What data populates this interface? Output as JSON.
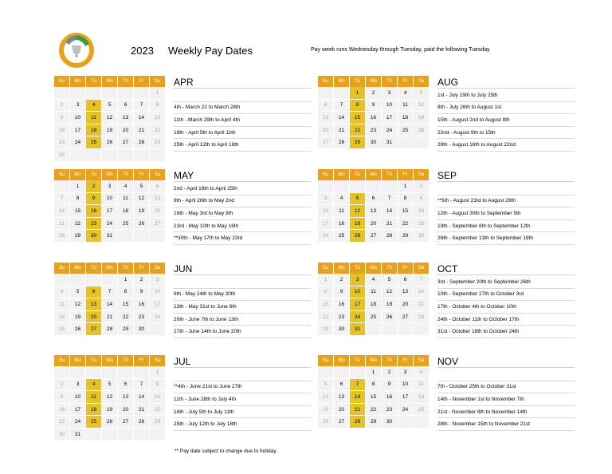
{
  "header": {
    "year": "2023",
    "title": "Weekly Pay Dates",
    "subtitle": "Pay week runs Wednesday through Tuesday, paid the following Tuesday"
  },
  "day_headers": [
    "Su",
    "Mo",
    "Tu",
    "We",
    "Th",
    "Fr",
    "Sa"
  ],
  "colors": {
    "header_bg": "#e8a21a",
    "pay_day": "#e6c229",
    "cell_bg": "#f2f2f2"
  },
  "footnote": "** Pay date subject to change due to holiday.",
  "months": [
    {
      "name": "APR",
      "weeks": [
        [
          "",
          "",
          "",
          "",
          "",
          "",
          "1"
        ],
        [
          "2",
          "3",
          "4",
          "5",
          "6",
          "7",
          "8"
        ],
        [
          "9",
          "10",
          "11",
          "12",
          "13",
          "14",
          "15"
        ],
        [
          "16",
          "17",
          "18",
          "19",
          "20",
          "21",
          "22"
        ],
        [
          "23",
          "24",
          "25",
          "26",
          "27",
          "28",
          "29"
        ],
        [
          "30",
          "",
          "",
          "",
          "",
          "",
          ""
        ]
      ],
      "pay": [
        "4",
        "11",
        "18",
        "25"
      ],
      "lines": [
        "",
        "4th - March 22 to March 28th",
        "11th - March 29th to April 4th",
        "18th - April 5th to April 11th",
        "25th - April 12th to April 18th"
      ]
    },
    {
      "name": "AUG",
      "weeks": [
        [
          "",
          "",
          "1",
          "2",
          "3",
          "4",
          "5"
        ],
        [
          "6",
          "7",
          "8",
          "9",
          "10",
          "11",
          "12"
        ],
        [
          "13",
          "14",
          "15",
          "16",
          "17",
          "18",
          "19"
        ],
        [
          "20",
          "21",
          "22",
          "23",
          "24",
          "25",
          "26"
        ],
        [
          "27",
          "28",
          "29",
          "30",
          "31",
          "",
          ""
        ]
      ],
      "pay": [
        "1",
        "8",
        "15",
        "22",
        "29"
      ],
      "lines": [
        "1st - July 19th to July 25th",
        "8th - July 26th to August 1st",
        "15th - August 2nd to August 8th",
        "22nd - August 9th to 15th",
        "29th - August 16th to August 22nd"
      ]
    },
    {
      "name": "MAY",
      "weeks": [
        [
          "",
          "1",
          "2",
          "3",
          "4",
          "5",
          "6"
        ],
        [
          "7",
          "8",
          "9",
          "10",
          "11",
          "12",
          "13"
        ],
        [
          "14",
          "15",
          "16",
          "17",
          "18",
          "19",
          "20"
        ],
        [
          "21",
          "22",
          "23",
          "24",
          "25",
          "26",
          "27"
        ],
        [
          "28",
          "29",
          "30",
          "31",
          "",
          "",
          ""
        ]
      ],
      "pay": [
        "2",
        "9",
        "16",
        "23",
        "30"
      ],
      "lines": [
        "2nd - April 19th to April 25th",
        "9th - April 26th to May 2nd",
        "16th - May 3rd to May 9th",
        "23rd - May 10th to May 16th",
        "**30th - May 17th to May 23rd"
      ]
    },
    {
      "name": "SEP",
      "weeks": [
        [
          "",
          "",
          "",
          "",
          "",
          "1",
          "2"
        ],
        [
          "3",
          "4",
          "5",
          "6",
          "7",
          "8",
          "9"
        ],
        [
          "10",
          "11",
          "12",
          "13",
          "14",
          "15",
          "16"
        ],
        [
          "17",
          "18",
          "19",
          "20",
          "21",
          "22",
          "23"
        ],
        [
          "24",
          "25",
          "26",
          "27",
          "28",
          "29",
          "30"
        ]
      ],
      "pay": [
        "5",
        "12",
        "19",
        "26"
      ],
      "lines": [
        "",
        "**5th - August 23rd to August 29th",
        "12th - August 30th to September 5th",
        "19th - September 6th to September 12th",
        "26th - September 13th to September 19th"
      ]
    },
    {
      "name": "JUN",
      "weeks": [
        [
          "",
          "",
          "",
          "",
          "1",
          "2",
          "3"
        ],
        [
          "4",
          "5",
          "6",
          "7",
          "8",
          "9",
          "10"
        ],
        [
          "11",
          "12",
          "13",
          "14",
          "15",
          "16",
          "17"
        ],
        [
          "18",
          "19",
          "20",
          "21",
          "22",
          "23",
          "24"
        ],
        [
          "25",
          "26",
          "27",
          "28",
          "29",
          "30",
          ""
        ]
      ],
      "pay": [
        "6",
        "13",
        "20",
        "27"
      ],
      "lines": [
        "",
        "6th - May 24th to May 30th",
        "13th - May 31st to June 6th",
        "20th - June 7th to June 13th",
        "27th - June 14th to June 20th"
      ]
    },
    {
      "name": "OCT",
      "weeks": [
        [
          "1",
          "2",
          "3",
          "4",
          "5",
          "6",
          "7"
        ],
        [
          "8",
          "9",
          "10",
          "11",
          "12",
          "13",
          "14"
        ],
        [
          "15",
          "16",
          "17",
          "18",
          "19",
          "20",
          "21"
        ],
        [
          "22",
          "23",
          "24",
          "25",
          "26",
          "27",
          "28"
        ],
        [
          "29",
          "30",
          "31",
          "",
          "",
          "",
          ""
        ]
      ],
      "pay": [
        "3",
        "10",
        "17",
        "24",
        "31"
      ],
      "lines": [
        "3rd - September 20th to September 26th",
        "10th - September 27th to October 3rd",
        "17th - October 4th to October 10th",
        "24th - October 11th to October 17th",
        "31st - October 18th to October 24th"
      ]
    },
    {
      "name": "JUL",
      "weeks": [
        [
          "",
          "",
          "",
          "",
          "",
          "",
          "1"
        ],
        [
          "2",
          "3",
          "4",
          "5",
          "6",
          "7",
          "8"
        ],
        [
          "9",
          "10",
          "11",
          "12",
          "13",
          "14",
          "15"
        ],
        [
          "16",
          "17",
          "18",
          "19",
          "20",
          "21",
          "22"
        ],
        [
          "23",
          "24",
          "25",
          "26",
          "27",
          "28",
          "29"
        ],
        [
          "30",
          "31",
          "",
          "",
          "",
          "",
          ""
        ]
      ],
      "pay": [
        "4",
        "11",
        "18",
        "25"
      ],
      "lines": [
        "",
        "**4th - June 21st to June 27th",
        "11th - June 28th to July 4th",
        "18th - July 5th to July 11th",
        "25th - July 12th to July 18th"
      ]
    },
    {
      "name": "NOV",
      "weeks": [
        [
          "",
          "",
          "",
          "1",
          "2",
          "3",
          "4"
        ],
        [
          "5",
          "6",
          "7",
          "8",
          "9",
          "10",
          "11"
        ],
        [
          "12",
          "13",
          "14",
          "15",
          "16",
          "17",
          "18"
        ],
        [
          "19",
          "20",
          "21",
          "22",
          "23",
          "24",
          "25"
        ],
        [
          "26",
          "27",
          "28",
          "29",
          "30",
          "",
          ""
        ]
      ],
      "pay": [
        "7",
        "14",
        "21",
        "28"
      ],
      "lines": [
        "",
        "7th - October 25th to October 31st",
        "14th - November 1st to November 7th",
        "21st - November 8th to November 14th",
        "28th - November 15th to November 21st"
      ]
    }
  ]
}
